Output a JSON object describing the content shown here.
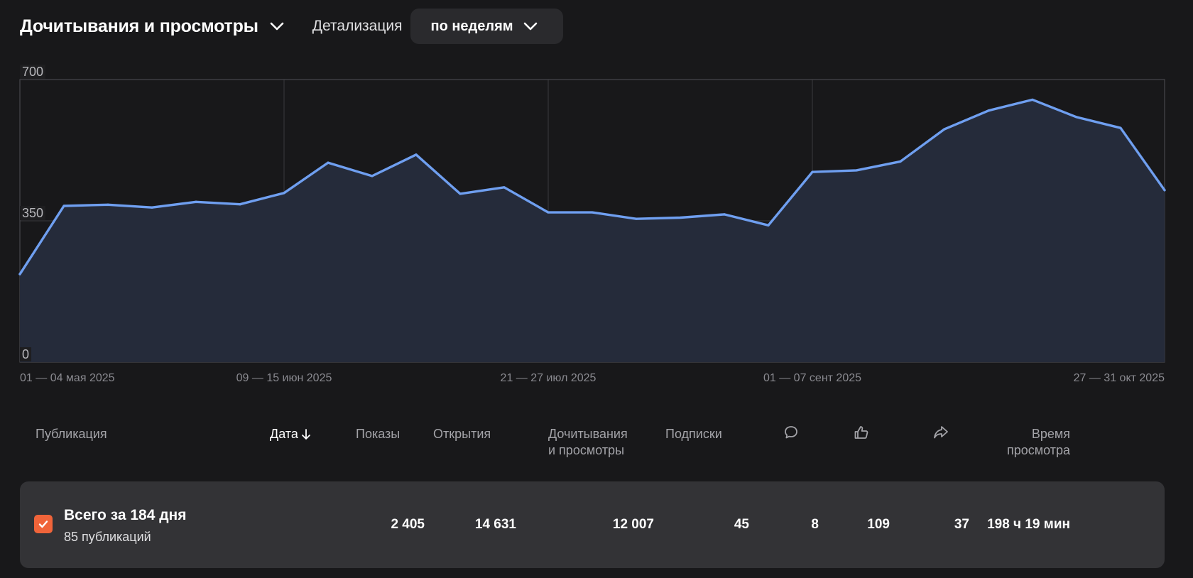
{
  "header": {
    "title": "Дочитывания и просмотры",
    "detail_label": "Детализация",
    "detail_value": "по неделям"
  },
  "chart_data": {
    "type": "area",
    "yticks": [
      "700",
      "350",
      "0"
    ],
    "ylim": [
      0,
      700
    ],
    "xlabels": [
      "01 — 04 мая 2025",
      "09 — 15 июн 2025",
      "21 — 27 июл 2025",
      "01 — 07 сент 2025",
      "27 — 31 окт 2025"
    ],
    "xlabel_index": [
      0,
      6,
      12,
      18,
      26
    ],
    "grid": true,
    "colors": {
      "line": "#6f9ff0",
      "fill": "#252b3a"
    },
    "values": [
      218,
      387,
      390,
      383,
      397,
      391,
      419,
      494,
      461,
      514,
      417,
      433,
      371,
      371,
      355,
      358,
      366,
      339,
      471,
      475,
      497,
      577,
      623,
      650,
      607,
      580,
      426
    ]
  },
  "table": {
    "headers": {
      "publication": "Публикация",
      "date": "Дата",
      "impressions": "Показы",
      "opens": "Открытия",
      "reads_line1": "Дочитывания",
      "reads_line2": "и просмотры",
      "subscriptions": "Подписки",
      "time_line1": "Время",
      "time_line2": "просмотра"
    },
    "header_icons": [
      "comment-icon",
      "like-icon",
      "share-icon"
    ],
    "total": {
      "title": "Всего за 184 дня",
      "subtitle": "85 публикаций",
      "impressions": "2 405",
      "opens": "14 631",
      "reads": "12 007",
      "subscriptions": "45",
      "comments": "8",
      "likes": "109",
      "shares": "37",
      "time": "198 ч 19 мин"
    }
  }
}
